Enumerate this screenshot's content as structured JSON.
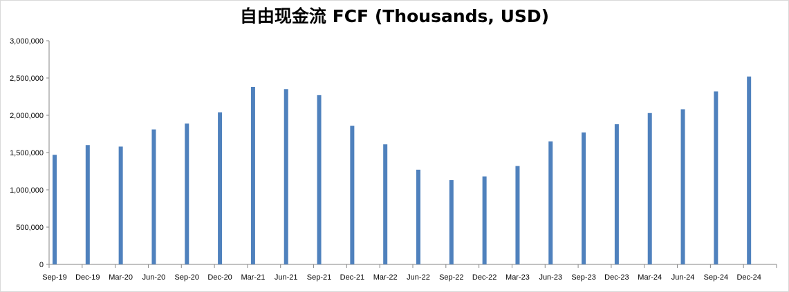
{
  "chart_data": {
    "type": "bar",
    "title": "自由现金流 FCF (Thousands, USD)",
    "xlabel": "",
    "ylabel": "",
    "ylim": [
      0,
      3000000
    ],
    "yticks": [
      "0",
      "500,000",
      "1,000,000",
      "1,500,000",
      "2,000,000",
      "2,500,000",
      "3,000,000"
    ],
    "grid": false,
    "bar_color": "#4f81bd",
    "categories": [
      "Sep-19",
      "Dec-19",
      "Mar-20",
      "Jun-20",
      "Sep-20",
      "Dec-20",
      "Mar-21",
      "Jun-21",
      "Sep-21",
      "Dec-21",
      "Mar-22",
      "Jun-22",
      "Sep-22",
      "Dec-22",
      "Mar-23",
      "Jun-23",
      "Sep-23",
      "Dec-23",
      "Mar-24",
      "Jun-24",
      "Sep-24",
      "Dec-24"
    ],
    "values": [
      1470000,
      1600000,
      1580000,
      1810000,
      1890000,
      2040000,
      2380000,
      2350000,
      2270000,
      1860000,
      1610000,
      1270000,
      1130000,
      1180000,
      1320000,
      1650000,
      1770000,
      1880000,
      2030000,
      2080000,
      2320000,
      2520000
    ]
  }
}
